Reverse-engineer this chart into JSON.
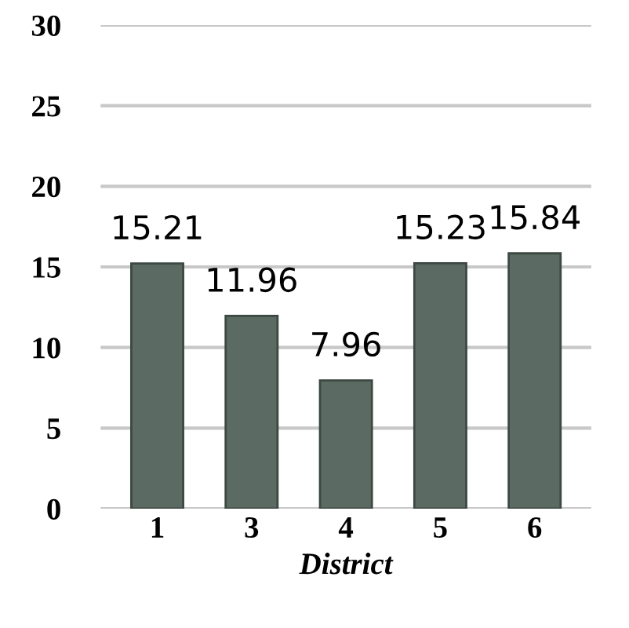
{
  "chart_data": {
    "type": "bar",
    "xlabel": "District",
    "categories": [
      "1",
      "3",
      "4",
      "5",
      "6"
    ],
    "values": [
      15.21,
      11.96,
      7.96,
      15.23,
      15.84
    ],
    "color": "#5b6b63",
    "ylim": [
      0,
      30
    ],
    "yticks": [
      0,
      5,
      10,
      15,
      20,
      25,
      30
    ],
    "grid": "y",
    "data_labels": true
  }
}
